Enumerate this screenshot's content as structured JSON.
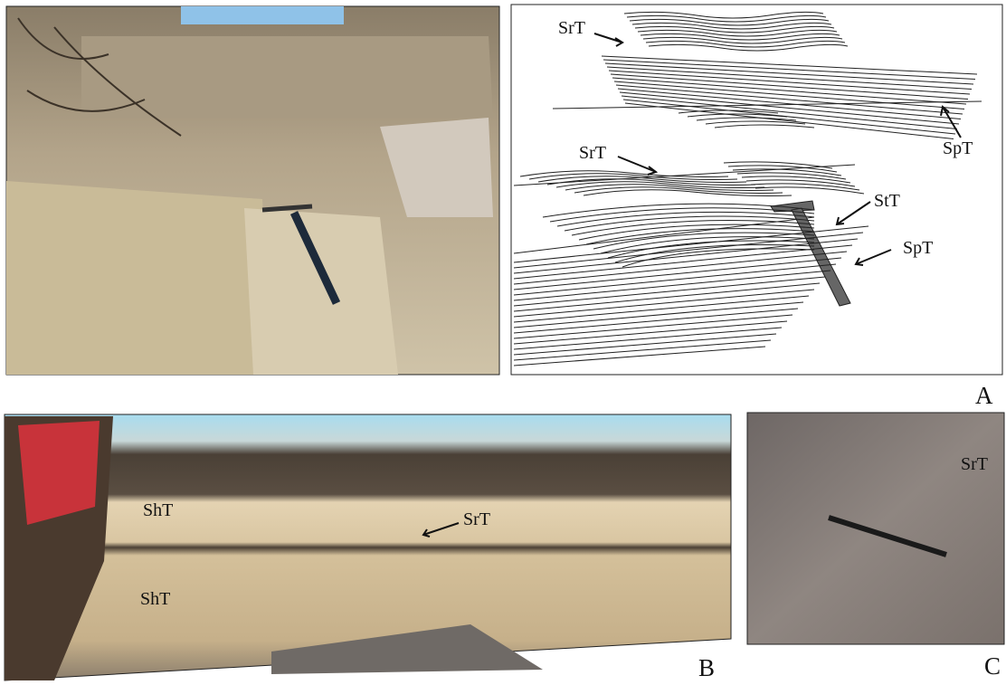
{
  "panel_a": {
    "label": "A",
    "sketch_labels": [
      "SrT",
      "SpT",
      "SrT",
      "StT",
      "SpT"
    ]
  },
  "panel_b": {
    "label": "B",
    "photo_labels": [
      "ShT",
      "SrT",
      "ShT"
    ]
  },
  "panel_c": {
    "label": "C",
    "photo_labels": [
      "SrT"
    ]
  }
}
